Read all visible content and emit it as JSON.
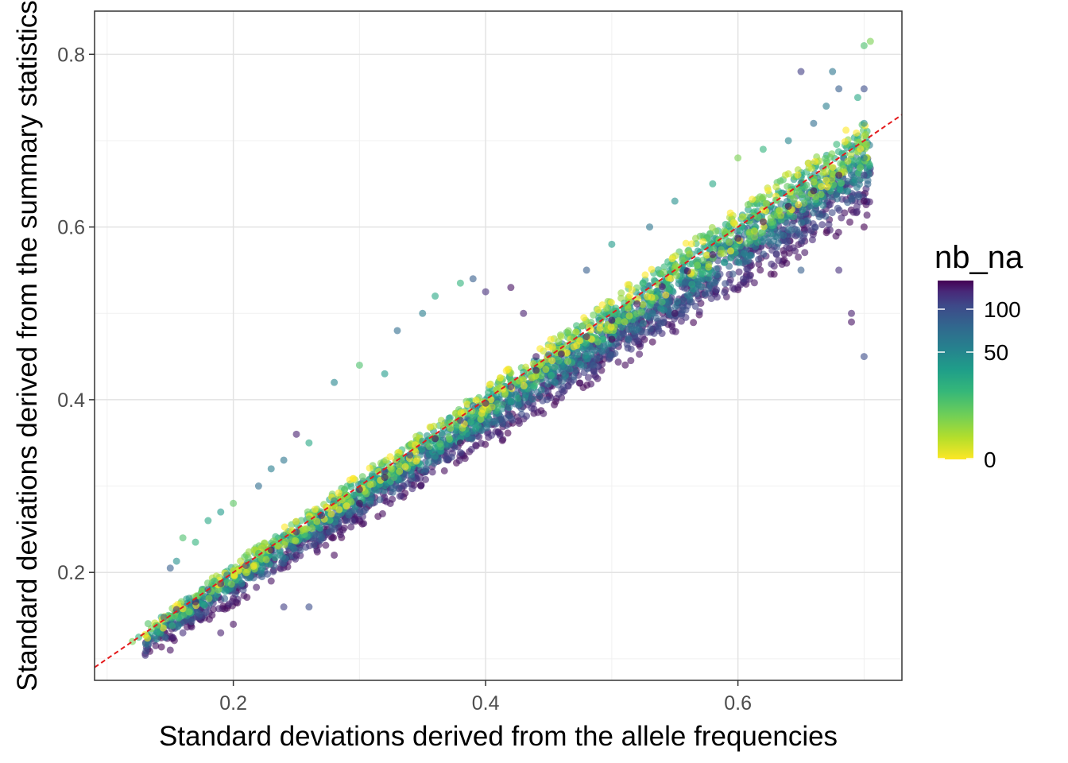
{
  "chart_data": {
    "type": "scatter",
    "title": "",
    "xlabel": "Standard deviations derived from the allele frequencies",
    "ylabel": "Standard deviations derived from the summary statistics",
    "xlim": [
      0.09,
      0.73
    ],
    "ylim": [
      0.075,
      0.85
    ],
    "xticks": [
      0.2,
      0.4,
      0.6
    ],
    "xtick_labels": [
      "0.2",
      "0.4",
      "0.6"
    ],
    "yticks": [
      0.2,
      0.4,
      0.6,
      0.8
    ],
    "ytick_labels": [
      "0.2",
      "0.4",
      "0.6",
      "0.8"
    ],
    "grid": true,
    "reference_line": {
      "style": "dashed",
      "color": "#e41a1c",
      "slope": 1,
      "intercept": 0
    },
    "legend": {
      "title": "nb_na",
      "position": "right",
      "colormap": "viridis",
      "direction": "yellow (low) to purple (high)",
      "labels": [
        "100",
        "50",
        "0"
      ],
      "max": 120
    },
    "series": [
      {
        "points": [
          [
            0.135,
            0.135,
            5
          ],
          [
            0.14,
            0.138,
            20
          ],
          [
            0.145,
            0.148,
            60
          ],
          [
            0.15,
            0.149,
            10
          ],
          [
            0.155,
            0.157,
            90
          ],
          [
            0.16,
            0.158,
            0
          ],
          [
            0.165,
            0.17,
            30
          ],
          [
            0.17,
            0.166,
            110
          ],
          [
            0.175,
            0.178,
            5
          ],
          [
            0.18,
            0.18,
            70
          ],
          [
            0.185,
            0.19,
            15
          ],
          [
            0.19,
            0.187,
            100
          ],
          [
            0.195,
            0.197,
            40
          ],
          [
            0.2,
            0.202,
            3
          ],
          [
            0.21,
            0.208,
            80
          ],
          [
            0.22,
            0.222,
            12
          ],
          [
            0.23,
            0.226,
            115
          ],
          [
            0.24,
            0.243,
            25
          ],
          [
            0.25,
            0.247,
            95
          ],
          [
            0.26,
            0.262,
            8
          ],
          [
            0.27,
            0.266,
            105
          ],
          [
            0.28,
            0.283,
            35
          ],
          [
            0.29,
            0.289,
            2
          ],
          [
            0.3,
            0.296,
            110
          ],
          [
            0.31,
            0.313,
            18
          ],
          [
            0.32,
            0.317,
            90
          ],
          [
            0.33,
            0.334,
            6
          ],
          [
            0.34,
            0.336,
            75
          ],
          [
            0.35,
            0.352,
            30
          ],
          [
            0.36,
            0.355,
            115
          ],
          [
            0.37,
            0.373,
            10
          ],
          [
            0.38,
            0.376,
            85
          ],
          [
            0.39,
            0.393,
            45
          ],
          [
            0.4,
            0.396,
            105
          ],
          [
            0.41,
            0.413,
            4
          ],
          [
            0.42,
            0.415,
            95
          ],
          [
            0.43,
            0.432,
            20
          ],
          [
            0.44,
            0.434,
            112
          ],
          [
            0.45,
            0.452,
            55
          ],
          [
            0.46,
            0.453,
            118
          ],
          [
            0.47,
            0.472,
            8
          ],
          [
            0.48,
            0.473,
            100
          ],
          [
            0.49,
            0.492,
            30
          ],
          [
            0.5,
            0.492,
            115
          ],
          [
            0.51,
            0.512,
            12
          ],
          [
            0.52,
            0.511,
            110
          ],
          [
            0.53,
            0.532,
            40
          ],
          [
            0.54,
            0.531,
            105
          ],
          [
            0.55,
            0.552,
            3
          ],
          [
            0.56,
            0.549,
            118
          ],
          [
            0.57,
            0.571,
            25
          ],
          [
            0.58,
            0.568,
            112
          ],
          [
            0.59,
            0.591,
            6
          ],
          [
            0.6,
            0.587,
            115
          ],
          [
            0.61,
            0.611,
            35
          ],
          [
            0.62,
            0.606,
            110
          ],
          [
            0.63,
            0.631,
            10
          ],
          [
            0.64,
            0.624,
            118
          ],
          [
            0.65,
            0.651,
            45
          ],
          [
            0.66,
            0.642,
            120
          ],
          [
            0.67,
            0.671,
            5
          ],
          [
            0.68,
            0.66,
            115
          ],
          [
            0.69,
            0.69,
            20
          ],
          [
            0.7,
            0.63,
            118
          ],
          [
            0.7,
            0.705,
            2
          ],
          [
            0.7,
            0.66,
            80
          ],
          [
            0.7,
            0.68,
            40
          ],
          [
            0.7,
            0.6,
            120
          ],
          [
            0.12,
            0.12,
            5
          ],
          [
            0.125,
            0.125,
            15
          ],
          [
            0.15,
            0.205,
            60
          ],
          [
            0.155,
            0.213,
            30
          ],
          [
            0.16,
            0.24,
            10
          ],
          [
            0.17,
            0.235,
            15
          ],
          [
            0.18,
            0.26,
            20
          ],
          [
            0.19,
            0.27,
            25
          ],
          [
            0.2,
            0.28,
            8
          ],
          [
            0.22,
            0.3,
            50
          ],
          [
            0.23,
            0.32,
            40
          ],
          [
            0.24,
            0.33,
            45
          ],
          [
            0.26,
            0.35,
            20
          ],
          [
            0.25,
            0.36,
            100
          ],
          [
            0.28,
            0.42,
            35
          ],
          [
            0.3,
            0.44,
            10
          ],
          [
            0.32,
            0.43,
            25
          ],
          [
            0.33,
            0.48,
            50
          ],
          [
            0.35,
            0.5,
            40
          ],
          [
            0.36,
            0.52,
            20
          ],
          [
            0.38,
            0.535,
            15
          ],
          [
            0.39,
            0.54,
            60
          ],
          [
            0.4,
            0.525,
            90
          ],
          [
            0.42,
            0.53,
            110
          ],
          [
            0.43,
            0.5,
            100
          ],
          [
            0.44,
            0.45,
            105
          ],
          [
            0.48,
            0.55,
            60
          ],
          [
            0.5,
            0.58,
            25
          ],
          [
            0.53,
            0.6,
            45
          ],
          [
            0.55,
            0.63,
            30
          ],
          [
            0.58,
            0.65,
            20
          ],
          [
            0.6,
            0.68,
            5
          ],
          [
            0.62,
            0.69,
            15
          ],
          [
            0.64,
            0.7,
            35
          ],
          [
            0.66,
            0.72,
            50
          ],
          [
            0.67,
            0.74,
            40
          ],
          [
            0.675,
            0.78,
            45
          ],
          [
            0.68,
            0.76,
            60
          ],
          [
            0.7,
            0.81,
            10
          ],
          [
            0.705,
            0.815,
            5
          ],
          [
            0.7,
            0.76,
            70
          ],
          [
            0.7,
            0.72,
            30
          ],
          [
            0.695,
            0.75,
            20
          ],
          [
            0.65,
            0.78,
            80
          ],
          [
            0.15,
            0.11,
            110
          ],
          [
            0.16,
            0.13,
            90
          ],
          [
            0.19,
            0.13,
            100
          ],
          [
            0.2,
            0.14,
            110
          ],
          [
            0.24,
            0.16,
            80
          ],
          [
            0.26,
            0.16,
            70
          ],
          [
            0.2,
            0.17,
            105
          ],
          [
            0.23,
            0.19,
            110
          ],
          [
            0.25,
            0.22,
            100
          ],
          [
            0.28,
            0.22,
            115
          ],
          [
            0.3,
            0.28,
            112
          ],
          [
            0.32,
            0.31,
            110
          ],
          [
            0.38,
            0.35,
            115
          ],
          [
            0.5,
            0.47,
            118
          ],
          [
            0.55,
            0.5,
            115
          ],
          [
            0.69,
            0.5,
            100
          ],
          [
            0.7,
            0.45,
            70
          ],
          [
            0.69,
            0.49,
            110
          ],
          [
            0.68,
            0.55,
            90
          ],
          [
            0.65,
            0.55,
            60
          ],
          [
            0.6,
            0.53,
            100
          ]
        ]
      }
    ]
  }
}
